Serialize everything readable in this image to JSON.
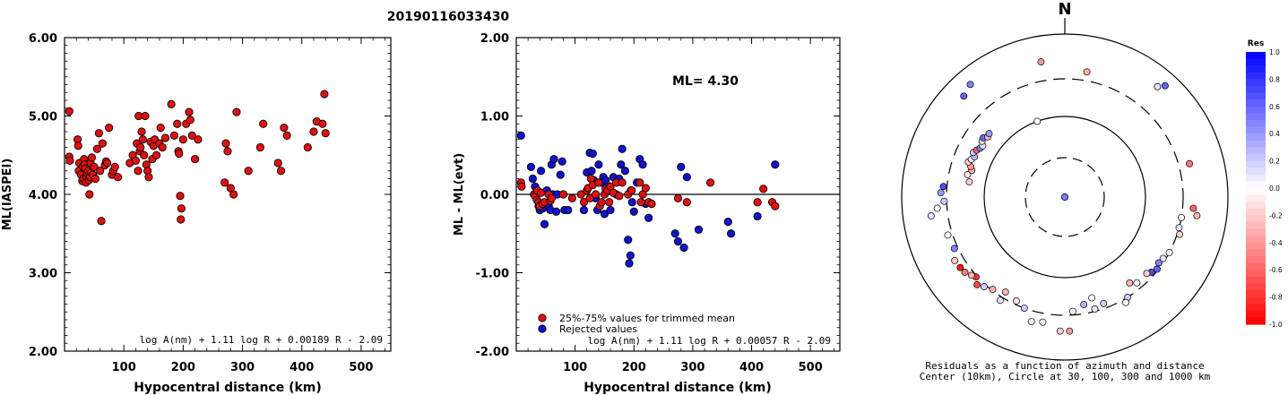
{
  "title": "20190116033430",
  "colors": {
    "accepted": "#dd1111",
    "rejected": "#1111cc",
    "axis": "#000000"
  },
  "chart_data": [
    {
      "type": "scatter",
      "title": "",
      "xlabel": "Hypocentral distance (km)",
      "ylabel": "ML(IASPEI)",
      "xlim": [
        0,
        550
      ],
      "ylim": [
        2.0,
        6.0
      ],
      "xticks": [
        "100",
        "200",
        "300",
        "400",
        "500"
      ],
      "yticks": [
        "2.00",
        "3.00",
        "4.00",
        "5.00",
        "6.00"
      ],
      "formula": "log A(nm) + 1.11 log R + 0.00189 R - 2.09",
      "series": [
        {
          "x": [
            8,
            8,
            9,
            22,
            23,
            24,
            25,
            28,
            30,
            31,
            32,
            33,
            34,
            35,
            36,
            37,
            38,
            40,
            41,
            42,
            43,
            44,
            45,
            46,
            48,
            50,
            52,
            55,
            58,
            60,
            62,
            64,
            68,
            70,
            72,
            75,
            80,
            82,
            85,
            90,
            110,
            115,
            120,
            122,
            124,
            125,
            127,
            128,
            130,
            132,
            134,
            136,
            138,
            140,
            142,
            145,
            148,
            150,
            152,
            155,
            160,
            162,
            165,
            170,
            180,
            185,
            190,
            192,
            193,
            195,
            196,
            197,
            200,
            205,
            210,
            212,
            215,
            220,
            225,
            270,
            272,
            275,
            280,
            285,
            290,
            310,
            330,
            335,
            360,
            365,
            370,
            375,
            410,
            420,
            425,
            435,
            438,
            440
          ],
          "y": [
            5.06,
            4.48,
            4.43,
            4.7,
            4.62,
            4.3,
            4.4,
            4.25,
            4.17,
            4.35,
            4.2,
            4.45,
            4.38,
            4.33,
            4.15,
            4.23,
            4.27,
            4.3,
            4.18,
            4.0,
            4.22,
            4.4,
            4.28,
            4.47,
            4.25,
            4.35,
            4.2,
            4.58,
            4.78,
            4.3,
            3.66,
            4.65,
            4.37,
            4.42,
            4.4,
            4.85,
            4.25,
            4.3,
            4.35,
            4.22,
            4.4,
            4.5,
            4.43,
            4.65,
            4.3,
            5.0,
            4.55,
            4.6,
            4.8,
            4.7,
            4.5,
            5.0,
            4.38,
            4.3,
            4.22,
            4.67,
            4.45,
            4.62,
            4.7,
            4.5,
            4.65,
            4.85,
            4.6,
            4.72,
            5.15,
            4.75,
            4.9,
            4.55,
            4.52,
            3.98,
            3.68,
            3.82,
            4.7,
            4.9,
            5.05,
            4.95,
            4.75,
            4.45,
            4.7,
            4.15,
            4.65,
            4.55,
            4.08,
            4.0,
            5.05,
            4.3,
            4.6,
            4.9,
            4.4,
            4.3,
            4.85,
            4.75,
            4.6,
            4.8,
            4.93,
            4.9,
            5.28,
            4.78
          ]
        }
      ]
    },
    {
      "type": "scatter",
      "title": "",
      "xlabel": "Hypocentral distance (km)",
      "ylabel": "ML - ML(evt)",
      "xlim": [
        0,
        550
      ],
      "ylim": [
        -2.0,
        2.0
      ],
      "xticks": [
        "100",
        "200",
        "300",
        "400",
        "500"
      ],
      "yticks": [
        "-2.00",
        "-1.00",
        "0.00",
        "1.00",
        "2.00"
      ],
      "annotation": "ML= 4.30",
      "formula": "log A(nm) + 1.11 log R + 0.00057 R - 2.09",
      "series": [
        {
          "name": "25%-75% values for trimmed mean",
          "x": [
            8,
            9,
            30,
            32,
            35,
            36,
            38,
            40,
            42,
            45,
            48,
            55,
            58,
            60,
            80,
            95,
            110,
            115,
            120,
            122,
            125,
            127,
            130,
            135,
            140,
            142,
            145,
            150,
            152,
            155,
            158,
            160,
            165,
            170,
            175,
            180,
            190,
            196,
            210,
            212,
            215,
            220,
            225,
            230,
            275,
            290,
            330,
            410,
            420,
            435,
            440
          ],
          "y": [
            0.15,
            0.1,
            0.0,
            -0.02,
            -0.07,
            0.05,
            -0.1,
            -0.15,
            0.02,
            -0.12,
            -0.1,
            0.0,
            -0.08,
            -0.05,
            0.0,
            -0.05,
            0.0,
            -0.1,
            0.05,
            0.08,
            -0.05,
            0.2,
            0.12,
            0.0,
            0.15,
            -0.15,
            -0.1,
            0.0,
            0.07,
            0.05,
            -0.1,
            0.1,
            0.02,
            0.15,
            -0.02,
            0.15,
            0.0,
            0.05,
            0.15,
            -0.1,
            0.0,
            0.08,
            -0.1,
            -0.12,
            -0.05,
            -0.1,
            0.15,
            -0.1,
            0.07,
            -0.1,
            -0.15
          ]
        },
        {
          "name": "Rejected values",
          "x": [
            8,
            25,
            28,
            32,
            38,
            40,
            42,
            45,
            48,
            52,
            55,
            58,
            60,
            62,
            64,
            68,
            70,
            75,
            78,
            82,
            88,
            115,
            120,
            125,
            128,
            130,
            132,
            135,
            138,
            140,
            145,
            148,
            150,
            152,
            155,
            160,
            165,
            170,
            175,
            178,
            180,
            185,
            190,
            192,
            194,
            195,
            197,
            200,
            205,
            210,
            215,
            220,
            225,
            230,
            270,
            275,
            280,
            285,
            290,
            310,
            360,
            365,
            410,
            440
          ],
          "y": [
            0.75,
            0.35,
            0.2,
            0.1,
            -0.15,
            -0.2,
            0.3,
            -0.18,
            -0.38,
            0.05,
            -0.15,
            -0.2,
            0.38,
            0.0,
            0.45,
            -0.22,
            0.0,
            0.25,
            0.42,
            -0.2,
            -0.2,
            -0.2,
            0.28,
            0.53,
            0.3,
            0.52,
            0.18,
            -0.05,
            -0.2,
            0.38,
            0.15,
            0.22,
            -0.25,
            0.18,
            0.1,
            -0.2,
            0.22,
            0.0,
            0.2,
            0.38,
            0.58,
            0.3,
            -0.58,
            -0.88,
            -0.78,
            0.05,
            -0.1,
            -0.22,
            0.15,
            0.45,
            0.38,
            -0.12,
            -0.3,
            -0.12,
            -0.5,
            -0.6,
            0.35,
            -0.68,
            0.22,
            -0.45,
            -0.35,
            -0.5,
            -0.28,
            0.38
          ]
        }
      ]
    },
    {
      "type": "polar_scatter",
      "north_label": "N",
      "caption_line1": "Residuals as a function of azimuth and distance",
      "caption_line2": "Center (10km), Circle at 30, 100, 300 and 1000 km",
      "colorbar_title": "Res",
      "colorbar_ticks": [
        "1.0",
        "0.8",
        "0.6",
        "0.4",
        "0.2",
        "0.0",
        "-0.2",
        "-0.4",
        "-0.6",
        "-0.8",
        "-1.0"
      ],
      "points": [
        {
          "az": 0,
          "dist": 10,
          "res": 0.8
        },
        {
          "az": 90,
          "dist": 10,
          "res": 0.5
        },
        {
          "az": 10,
          "dist": 380,
          "res": -0.3
        },
        {
          "az": 40,
          "dist": 600,
          "res": 0.1
        },
        {
          "az": 42,
          "dist": 700,
          "res": 0.6
        },
        {
          "az": 75,
          "dist": 400,
          "res": -0.5
        },
        {
          "az": 95,
          "dist": 400,
          "res": -0.6
        },
        {
          "az": 98,
          "dist": 450,
          "res": -0.3
        },
        {
          "az": 100,
          "dist": 300,
          "res": 0.0
        },
        {
          "az": 105,
          "dist": 300,
          "res": 0.1
        },
        {
          "az": 108,
          "dist": 320,
          "res": -0.2
        },
        {
          "az": 118,
          "dist": 300,
          "res": 0.0
        },
        {
          "az": 122,
          "dist": 280,
          "res": 0.1
        },
        {
          "az": 125,
          "dist": 270,
          "res": 0.5
        },
        {
          "az": 128,
          "dist": 290,
          "res": 0.6
        },
        {
          "az": 131,
          "dist": 270,
          "res": 0.7
        },
        {
          "az": 133,
          "dist": 250,
          "res": -0.2
        },
        {
          "az": 140,
          "dist": 250,
          "res": 0.0
        },
        {
          "az": 143,
          "dist": 220,
          "res": -0.3
        },
        {
          "az": 148,
          "dist": 300,
          "res": 0.2
        },
        {
          "az": 150,
          "dist": 330,
          "res": 0.0
        },
        {
          "az": 160,
          "dist": 260,
          "res": 0.2
        },
        {
          "az": 165,
          "dist": 200,
          "res": 0.0
        },
        {
          "az": 165,
          "dist": 280,
          "res": 0.1
        },
        {
          "az": 170,
          "dist": 230,
          "res": 0.3
        },
        {
          "az": 176,
          "dist": 270,
          "res": 0.0
        },
        {
          "az": 178,
          "dist": 460,
          "res": -0.4
        },
        {
          "az": 182,
          "dist": 460,
          "res": -0.2
        },
        {
          "az": 190,
          "dist": 380,
          "res": 0.0
        },
        {
          "az": 195,
          "dist": 400,
          "res": 0.0
        },
        {
          "az": 200,
          "dist": 300,
          "res": 0.2
        },
        {
          "az": 205,
          "dist": 270,
          "res": -0.1
        },
        {
          "az": 212,
          "dist": 330,
          "res": 0.1
        },
        {
          "az": 212,
          "dist": 250,
          "res": -0.3
        },
        {
          "az": 218,
          "dist": 290,
          "res": -0.3
        },
        {
          "az": 222,
          "dist": 320,
          "res": 0.2
        },
        {
          "az": 225,
          "dist": 350,
          "res": -0.7
        },
        {
          "az": 228,
          "dist": 310,
          "res": -0.8
        },
        {
          "az": 230,
          "dist": 330,
          "res": -0.3
        },
        {
          "az": 233,
          "dist": 360,
          "res": -0.5
        },
        {
          "az": 236,
          "dist": 370,
          "res": -0.9
        },
        {
          "az": 240,
          "dist": 380,
          "res": -0.2
        },
        {
          "az": 245,
          "dist": 330,
          "res": 0.5
        },
        {
          "az": 252,
          "dist": 340,
          "res": 0.0
        },
        {
          "az": 262,
          "dist": 470,
          "res": 0.1
        },
        {
          "az": 265,
          "dist": 390,
          "res": 0.0
        },
        {
          "az": 268,
          "dist": 320,
          "res": 0.2
        },
        {
          "az": 272,
          "dist": 350,
          "res": 0.4
        },
        {
          "az": 275,
          "dist": 330,
          "res": 0.7
        },
        {
          "az": 279,
          "dist": 160,
          "res": -0.2
        },
        {
          "az": 283,
          "dist": 175,
          "res": -0.1
        },
        {
          "az": 286,
          "dist": 160,
          "res": -0.3
        },
        {
          "az": 288,
          "dist": 170,
          "res": -0.4
        },
        {
          "az": 290,
          "dist": 190,
          "res": -0.2
        },
        {
          "az": 292,
          "dist": 180,
          "res": 0.0
        },
        {
          "az": 294,
          "dist": 170,
          "res": 0.3
        },
        {
          "az": 296,
          "dist": 185,
          "res": 0.2
        },
        {
          "az": 298,
          "dist": 175,
          "res": -0.6
        },
        {
          "az": 300,
          "dist": 165,
          "res": 0.5
        },
        {
          "az": 302,
          "dist": 160,
          "res": 0.1
        },
        {
          "az": 304,
          "dist": 175,
          "res": -0.1
        },
        {
          "az": 306,
          "dist": 180,
          "res": 0.6
        },
        {
          "az": 308,
          "dist": 165,
          "res": -0.3
        },
        {
          "az": 310,
          "dist": 170,
          "res": 0.4
        },
        {
          "az": 315,
          "dist": 580,
          "res": 0.6
        },
        {
          "az": 320,
          "dist": 650,
          "res": 0.5
        },
        {
          "az": 340,
          "dist": 100,
          "res": 0.0
        },
        {
          "az": 350,
          "dist": 500,
          "res": -0.4
        }
      ]
    }
  ]
}
